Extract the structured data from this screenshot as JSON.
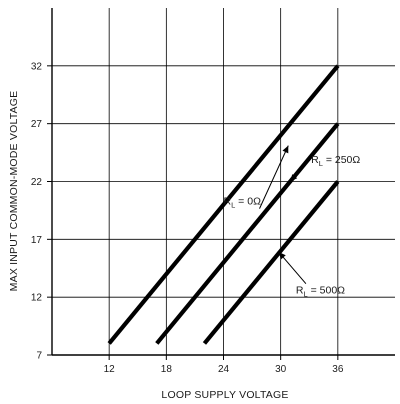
{
  "chart_data": {
    "type": "line",
    "xlabel": "LOOP SUPPLY VOLTAGE",
    "ylabel": "MAX INPUT COMMON-MODE VOLTAGE",
    "xlim": [
      6,
      42
    ],
    "ylim": [
      7,
      37
    ],
    "x_ticks": [
      12,
      18,
      24,
      30,
      36
    ],
    "y_ticks": [
      7,
      12,
      17,
      22,
      27,
      32
    ],
    "grid": true,
    "colors": {
      "line": "#000000",
      "grid": "#000000",
      "axis": "#000000"
    },
    "series": [
      {
        "name": "R_L = 0Ω",
        "x": [
          12,
          36
        ],
        "y": [
          8,
          32
        ],
        "label": {
          "prefix": "R",
          "sub": "L",
          "suffix": " = 0Ω",
          "at": [
            24,
            20
          ],
          "anchor": [
            30.8,
            25.1
          ]
        }
      },
      {
        "name": "R_L = 250Ω",
        "x": [
          17,
          36
        ],
        "y": [
          8,
          27
        ],
        "label": {
          "prefix": "R",
          "sub": "L",
          "suffix": " = 250Ω",
          "at": [
            33.2,
            23.6
          ],
          "anchor": [
            31,
            22
          ]
        }
      },
      {
        "name": "R_L = 500Ω",
        "x": [
          22,
          36
        ],
        "y": [
          8,
          22
        ],
        "label": {
          "prefix": "R",
          "sub": "L",
          "suffix": " = 500Ω",
          "at": [
            31.6,
            12.3
          ],
          "anchor": [
            29.8,
            15.9
          ]
        }
      }
    ]
  }
}
